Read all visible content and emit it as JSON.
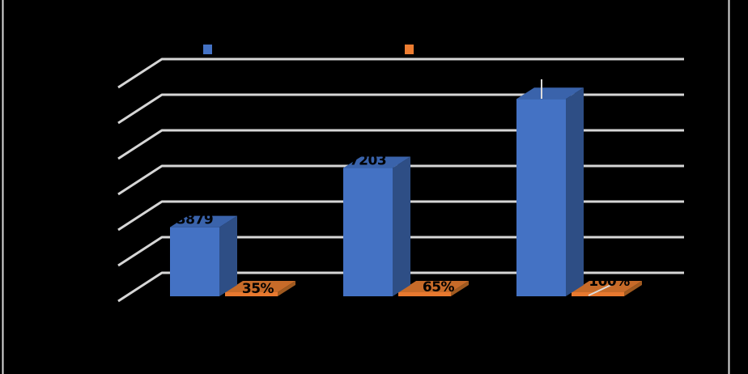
{
  "palette": {
    "background": "#000000",
    "gridline": "#D6D6D6",
    "chart_border": "#DADADA",
    "data_label_text": "#000000",
    "leader_line": "#DCDCDC",
    "series1": {
      "front": "#4472C4",
      "top": "#3A63AB",
      "side": "#2E4E85"
    },
    "series2": {
      "front": "#E8792F",
      "top": "#C76B29",
      "side": "#A05A20"
    }
  },
  "chart_data": {
    "type": "bar",
    "variant": "3d-clustered-column",
    "categories": [
      "",
      "",
      ""
    ],
    "series": [
      {
        "name": "",
        "color": "#4472C4",
        "axis": "primary",
        "values": [
          3879,
          7203,
          11082
        ],
        "data_labels": [
          "3879",
          "7203",
          ""
        ]
      },
      {
        "name": "",
        "color": "#ED7D31",
        "axis": "secondary",
        "unit": "%",
        "values": [
          35,
          65,
          100
        ],
        "data_labels": [
          "35%",
          "65%",
          "100%"
        ]
      }
    ],
    "value_axis": {
      "min": 0,
      "max": 12000,
      "major_unit": 2000,
      "tick_labels_visible": false
    },
    "category_axis": {
      "labels_visible": false
    },
    "gridlines_count": 7,
    "grid": true,
    "legend": {
      "position": "top",
      "labels_visible": false,
      "marker_colors": [
        "#4472C4",
        "#ED7D31"
      ]
    }
  }
}
